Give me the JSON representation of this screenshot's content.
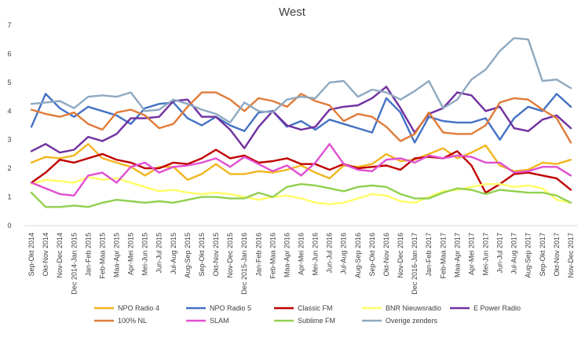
{
  "chart_data": {
    "type": "line",
    "title": "West",
    "xlabel": "",
    "ylabel": "",
    "ylim": [
      0,
      7
    ],
    "yticks": [
      "0",
      "1",
      "2",
      "3",
      "4",
      "5",
      "6",
      "7"
    ],
    "grid": false,
    "legend_position": "bottom",
    "categories": [
      "Sep-Okt 2014",
      "Okt-Nov 2014",
      "Nov-Dec 2014",
      "Dec 2014-Jan 2015",
      "Jan-Feb 2015",
      "Feb-Maa 2015",
      "Maa-Apr 2015",
      "Apr-Mei 2015",
      "Mei-Jun 2015",
      "Jun-Jul 2015",
      "Jul-Aug 2015",
      "Aug-Sep 2015",
      "Sep-Okt 2015",
      "Okt-Nov 2015",
      "Nov-Dec 2015",
      "Dec 2015-Jan 2016",
      "Jan-Feb 2016",
      "Feb-Maa 2016",
      "Maa-Apr 2016",
      "Apr-Mei 2016",
      "Mei-Jun 2016",
      "Jun-Jul 2016",
      "Jul-Aug 2016",
      "Aug-Sep 2016",
      "Sep-Okt 2016",
      "Okt-Nov 2016",
      "Nov-Dec 2016",
      "Dec 2016-Jan 2017",
      "Jan-Feb 2017",
      "Feb-Maa 2017",
      "Maa-Apr 2017",
      "Apr-Mei 2017",
      "Mei-Jun 2017",
      "Jun-Jul 2017",
      "Jul-Aug 2017",
      "Aug-Sep 2017",
      "Sep-Okt 2017",
      "Okt-Nov 2017",
      "Nov-Dec 2017"
    ],
    "series": [
      {
        "name": "NPO Radio 4",
        "color": "#F2B61F",
        "values": [
          2.2,
          2.4,
          2.35,
          2.45,
          2.85,
          2.35,
          2.2,
          2.05,
          1.75,
          2.05,
          2.05,
          1.6,
          1.8,
          2.15,
          1.8,
          1.8,
          1.9,
          1.85,
          1.95,
          2.1,
          1.85,
          1.65,
          2.1,
          2.05,
          2.15,
          2.5,
          2.25,
          2.3,
          2.5,
          2.7,
          2.35,
          2.55,
          2.8,
          2.1,
          1.9,
          1.95,
          2.2,
          2.15,
          2.3
        ]
      },
      {
        "name": "NPO Radio 5",
        "color": "#4472C4",
        "values": [
          3.45,
          4.6,
          4.1,
          3.8,
          4.15,
          4.0,
          3.85,
          3.55,
          4.1,
          4.25,
          4.3,
          3.75,
          3.5,
          3.8,
          3.5,
          3.3,
          3.95,
          4.0,
          3.45,
          3.65,
          3.35,
          3.7,
          3.55,
          3.4,
          3.25,
          4.45,
          3.95,
          2.9,
          3.8,
          3.65,
          3.6,
          3.6,
          3.75,
          3.0,
          3.75,
          4.15,
          4.0,
          4.6,
          4.15
        ]
      },
      {
        "name": "Classic FM",
        "color": "#C00000",
        "values": [
          1.5,
          1.85,
          2.3,
          2.2,
          2.35,
          2.5,
          2.3,
          2.2,
          2.0,
          2.0,
          2.2,
          2.15,
          2.35,
          2.65,
          2.35,
          2.45,
          2.2,
          2.25,
          2.35,
          2.15,
          2.15,
          1.95,
          2.15,
          2.0,
          2.05,
          2.1,
          1.95,
          2.35,
          2.4,
          2.35,
          2.6,
          2.1,
          1.15,
          1.45,
          1.8,
          1.85,
          1.75,
          1.65,
          1.25
        ]
      },
      {
        "name": "BNR Nieuwsradio",
        "color": "#FFFF66",
        "values": [
          1.45,
          1.6,
          1.55,
          1.5,
          1.7,
          1.6,
          1.65,
          1.5,
          1.35,
          1.2,
          1.25,
          1.15,
          1.1,
          1.15,
          1.1,
          1.0,
          0.9,
          1.0,
          1.05,
          0.95,
          0.8,
          0.75,
          0.8,
          0.95,
          1.1,
          1.05,
          0.85,
          0.8,
          1.0,
          1.2,
          1.25,
          1.35,
          1.45,
          1.45,
          1.35,
          1.4,
          1.3,
          0.9,
          0.8
        ]
      },
      {
        "name": "E Power Radio",
        "color": "#7030A0",
        "values": [
          2.6,
          2.85,
          2.55,
          2.65,
          3.1,
          2.95,
          3.2,
          3.75,
          3.75,
          3.8,
          4.35,
          4.4,
          3.8,
          3.8,
          3.35,
          2.7,
          3.45,
          4.0,
          3.5,
          3.35,
          3.45,
          4.05,
          4.15,
          4.2,
          4.45,
          4.85,
          4.1,
          3.25,
          3.9,
          4.1,
          4.65,
          4.55,
          4.0,
          4.15,
          3.4,
          3.3,
          3.7,
          3.85,
          3.4
        ]
      },
      {
        "name": "100% NL",
        "color": "#E07B39",
        "values": [
          4.05,
          3.9,
          3.8,
          3.95,
          3.55,
          3.35,
          3.95,
          4.05,
          3.85,
          3.4,
          3.55,
          4.15,
          4.65,
          4.65,
          4.4,
          4.0,
          4.45,
          4.35,
          4.15,
          4.6,
          4.35,
          4.2,
          3.65,
          3.9,
          3.8,
          3.45,
          2.95,
          3.2,
          3.95,
          3.25,
          3.2,
          3.2,
          3.5,
          4.3,
          4.45,
          4.4,
          4.05,
          3.75,
          2.9
        ]
      },
      {
        "name": "SLAM",
        "color": "#E14FD2",
        "values": [
          1.5,
          1.3,
          1.1,
          1.05,
          1.75,
          1.85,
          1.5,
          2.05,
          2.2,
          1.85,
          2.05,
          2.1,
          2.2,
          2.35,
          2.05,
          2.4,
          2.15,
          1.9,
          2.1,
          1.75,
          2.2,
          2.85,
          2.15,
          1.95,
          1.9,
          2.3,
          2.35,
          2.2,
          2.45,
          2.35,
          2.45,
          2.4,
          2.2,
          2.2,
          1.85,
          1.9,
          2.05,
          2.05,
          1.75
        ]
      },
      {
        "name": "Sublime FM",
        "color": "#92D050",
        "values": [
          1.15,
          0.65,
          0.65,
          0.7,
          0.65,
          0.8,
          0.9,
          0.85,
          0.8,
          0.85,
          0.8,
          0.9,
          1.0,
          1.0,
          0.95,
          0.95,
          1.15,
          1.0,
          1.35,
          1.45,
          1.4,
          1.3,
          1.2,
          1.35,
          1.4,
          1.35,
          1.1,
          0.95,
          0.95,
          1.15,
          1.3,
          1.25,
          1.1,
          1.25,
          1.2,
          1.15,
          1.15,
          1.05,
          0.8
        ]
      },
      {
        "name": "Overige zenders",
        "color": "#8EA9C1",
        "values": [
          4.25,
          4.3,
          4.35,
          4.1,
          4.5,
          4.55,
          4.5,
          4.65,
          4.0,
          4.05,
          4.4,
          4.25,
          4.05,
          3.9,
          3.6,
          4.3,
          4.0,
          3.95,
          4.4,
          4.5,
          4.45,
          5.0,
          5.05,
          4.5,
          4.75,
          4.65,
          4.4,
          4.7,
          5.05,
          4.1,
          4.4,
          5.1,
          5.45,
          6.1,
          6.55,
          6.5,
          5.05,
          5.1,
          4.8
        ]
      }
    ]
  }
}
